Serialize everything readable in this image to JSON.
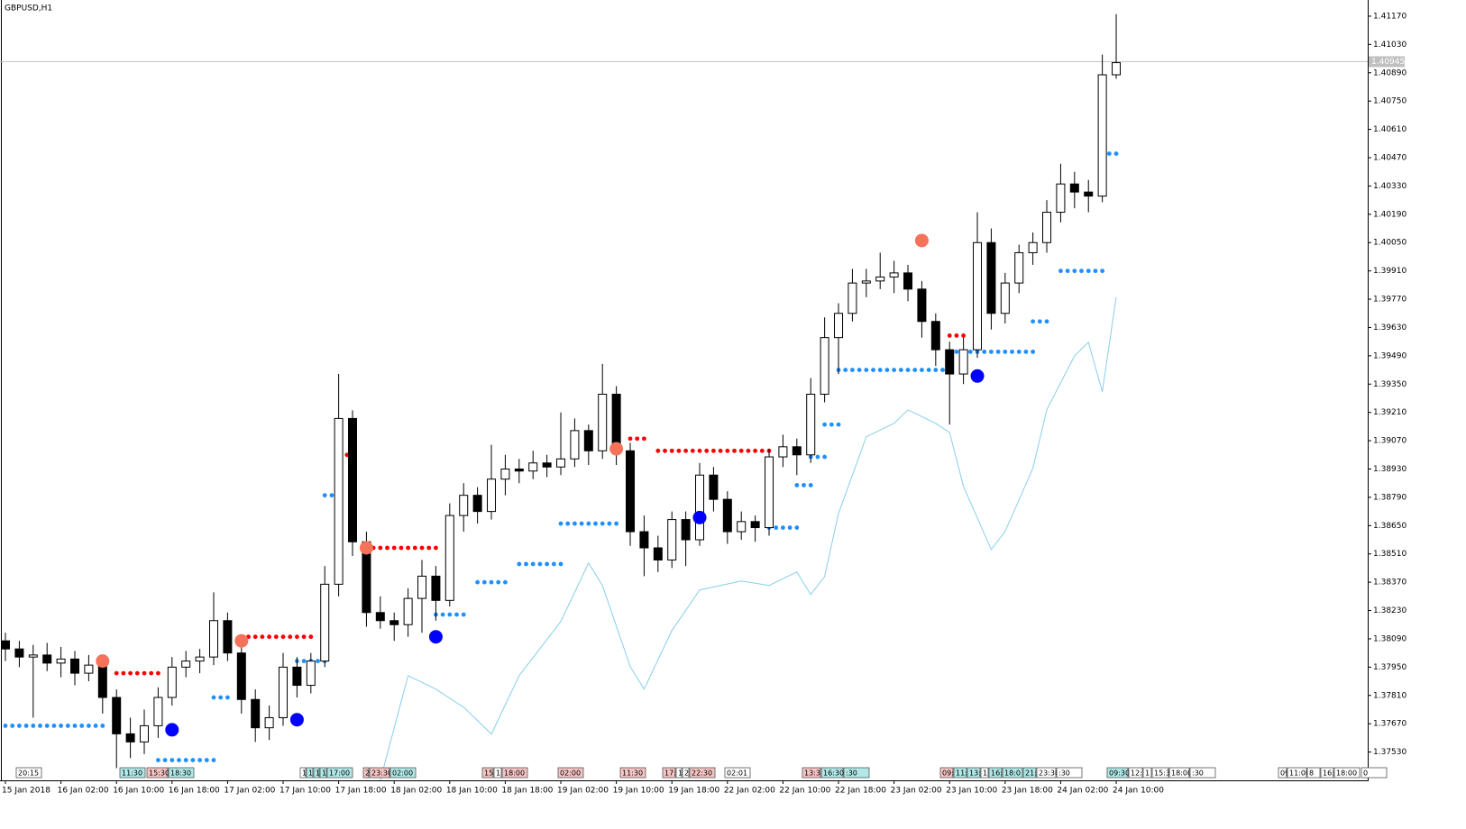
{
  "chart_data": {
    "type": "candlestick",
    "title": "GBPUSD,H1",
    "grid": false,
    "bull_color": "#ffffff",
    "bear_color": "#000000",
    "support_color": "#1e90ff",
    "resistance_color": "#ff0000",
    "ylim": [
      1.3739,
      1.4125
    ],
    "xlim": [
      -0.39,
      98.05
    ],
    "yticks": [
      {
        "value": 1.4117,
        "label": "1.41170"
      },
      {
        "value": 1.4103,
        "label": "1.41030"
      },
      {
        "value": 1.4089,
        "label": "1.40890"
      },
      {
        "value": 1.4075,
        "label": "1.40750"
      },
      {
        "value": 1.4061,
        "label": "1.40610"
      },
      {
        "value": 1.4047,
        "label": "1.40470"
      },
      {
        "value": 1.4033,
        "label": "1.40330"
      },
      {
        "value": 1.4019,
        "label": "1.40190"
      },
      {
        "value": 1.4005,
        "label": "1.40050"
      },
      {
        "value": 1.3991,
        "label": "1.39910"
      },
      {
        "value": 1.3977,
        "label": "1.39770"
      },
      {
        "value": 1.3963,
        "label": "1.39630"
      },
      {
        "value": 1.3949,
        "label": "1.39490"
      },
      {
        "value": 1.3935,
        "label": "1.39350"
      },
      {
        "value": 1.3921,
        "label": "1.39210"
      },
      {
        "value": 1.3907,
        "label": "1.39070"
      },
      {
        "value": 1.3893,
        "label": "1.38930"
      },
      {
        "value": 1.3879,
        "label": "1.38790"
      },
      {
        "value": 1.3865,
        "label": "1.38650"
      },
      {
        "value": 1.3851,
        "label": "1.38510"
      },
      {
        "value": 1.3837,
        "label": "1.38370"
      },
      {
        "value": 1.3823,
        "label": "1.38230"
      },
      {
        "value": 1.3809,
        "label": "1.38090"
      },
      {
        "value": 1.3795,
        "label": "1.37950"
      },
      {
        "value": 1.3781,
        "label": "1.37810"
      },
      {
        "value": 1.3767,
        "label": "1.37670"
      },
      {
        "value": 1.3753,
        "label": "1.37530"
      }
    ],
    "xticks": [
      {
        "value": 0,
        "label": "15 Jan 2018"
      },
      {
        "value": 4,
        "label": "16 Jan 02:00"
      },
      {
        "value": 8,
        "label": "16 Jan 10:00"
      },
      {
        "value": 12,
        "label": "16 Jan 18:00"
      },
      {
        "value": 16,
        "label": "17 Jan 02:00"
      },
      {
        "value": 20,
        "label": "17 Jan 10:00"
      },
      {
        "value": 24,
        "label": "17 Jan 18:00"
      },
      {
        "value": 28,
        "label": "18 Jan 02:00"
      },
      {
        "value": 32,
        "label": "18 Jan 10:00"
      },
      {
        "value": 36,
        "label": "18 Jan 18:00"
      },
      {
        "value": 40,
        "label": "19 Jan 02:00"
      },
      {
        "value": 44,
        "label": "19 Jan 10:00"
      },
      {
        "value": 48,
        "label": "19 Jan 18:00"
      },
      {
        "value": 52,
        "label": "22 Jan 02:00"
      },
      {
        "value": 56,
        "label": "22 Jan 10:00"
      },
      {
        "value": 60,
        "label": "22 Jan 18:00"
      },
      {
        "value": 64,
        "label": "23 Jan 02:00"
      },
      {
        "value": 68,
        "label": "23 Jan 10:00"
      },
      {
        "value": 72,
        "label": "23 Jan 18:00"
      },
      {
        "value": 76,
        "label": "24 Jan 02:00"
      },
      {
        "value": 80,
        "label": "24 Jan 10:00"
      }
    ],
    "bid": 1.40945,
    "candles": [
      [
        1.3808,
        1.3812,
        1.3798,
        1.3804
      ],
      [
        1.3804,
        1.3808,
        1.3795,
        1.38
      ],
      [
        1.38,
        1.3806,
        1.377,
        1.3801
      ],
      [
        1.3801,
        1.3807,
        1.3793,
        1.3797
      ],
      [
        1.3797,
        1.3805,
        1.379,
        1.3799
      ],
      [
        1.3799,
        1.3803,
        1.3786,
        1.3792
      ],
      [
        1.3792,
        1.3801,
        1.3788,
        1.3796
      ],
      [
        1.3796,
        1.3799,
        1.3772,
        1.378
      ],
      [
        1.378,
        1.3784,
        1.3745,
        1.3762
      ],
      [
        1.3762,
        1.377,
        1.375,
        1.3758
      ],
      [
        1.3758,
        1.3774,
        1.3752,
        1.3766
      ],
      [
        1.3766,
        1.3785,
        1.376,
        1.378
      ],
      [
        1.378,
        1.38,
        1.3776,
        1.3795
      ],
      [
        1.3795,
        1.3803,
        1.379,
        1.3798
      ],
      [
        1.3798,
        1.3804,
        1.3792,
        1.38
      ],
      [
        1.38,
        1.3832,
        1.3796,
        1.3818
      ],
      [
        1.3818,
        1.3822,
        1.3798,
        1.3802
      ],
      [
        1.3802,
        1.3806,
        1.3772,
        1.3779
      ],
      [
        1.3779,
        1.3784,
        1.3758,
        1.3765
      ],
      [
        1.3765,
        1.3776,
        1.3759,
        1.377
      ],
      [
        1.377,
        1.3802,
        1.3766,
        1.3795
      ],
      [
        1.3795,
        1.38,
        1.378,
        1.3786
      ],
      [
        1.3786,
        1.3802,
        1.3782,
        1.3798
      ],
      [
        1.3798,
        1.3845,
        1.3795,
        1.3836
      ],
      [
        1.3836,
        1.394,
        1.383,
        1.3918
      ],
      [
        1.3918,
        1.3922,
        1.385,
        1.3857
      ],
      [
        1.3857,
        1.3862,
        1.3815,
        1.3822
      ],
      [
        1.3822,
        1.383,
        1.3814,
        1.3818
      ],
      [
        1.3818,
        1.3822,
        1.3808,
        1.3816
      ],
      [
        1.3816,
        1.3834,
        1.381,
        1.3829
      ],
      [
        1.3829,
        1.3848,
        1.3812,
        1.384
      ],
      [
        1.384,
        1.3845,
        1.3818,
        1.3828
      ],
      [
        1.3828,
        1.3876,
        1.3825,
        1.387
      ],
      [
        1.387,
        1.3886,
        1.3862,
        1.388
      ],
      [
        1.388,
        1.3884,
        1.3866,
        1.3872
      ],
      [
        1.3872,
        1.3905,
        1.3868,
        1.3888
      ],
      [
        1.3888,
        1.39,
        1.388,
        1.3893
      ],
      [
        1.3893,
        1.3898,
        1.3886,
        1.3892
      ],
      [
        1.3892,
        1.3902,
        1.3888,
        1.3896
      ],
      [
        1.3896,
        1.39,
        1.3889,
        1.3894
      ],
      [
        1.3894,
        1.3921,
        1.389,
        1.3898
      ],
      [
        1.3898,
        1.3918,
        1.3894,
        1.3912
      ],
      [
        1.3912,
        1.3915,
        1.3895,
        1.3902
      ],
      [
        1.3902,
        1.3945,
        1.3898,
        1.393
      ],
      [
        1.393,
        1.3934,
        1.3895,
        1.3902
      ],
      [
        1.3902,
        1.3906,
        1.3855,
        1.3862
      ],
      [
        1.3862,
        1.387,
        1.384,
        1.3854
      ],
      [
        1.3854,
        1.386,
        1.3842,
        1.3848
      ],
      [
        1.3848,
        1.3872,
        1.3844,
        1.3868
      ],
      [
        1.3868,
        1.3872,
        1.3845,
        1.3858
      ],
      [
        1.3858,
        1.3896,
        1.3855,
        1.389
      ],
      [
        1.389,
        1.3894,
        1.3872,
        1.3878
      ],
      [
        1.3878,
        1.3882,
        1.3856,
        1.3862
      ],
      [
        1.3862,
        1.3872,
        1.3858,
        1.3867
      ],
      [
        1.3867,
        1.387,
        1.3857,
        1.3864
      ],
      [
        1.3864,
        1.3903,
        1.386,
        1.3899
      ],
      [
        1.3899,
        1.391,
        1.3894,
        1.3904
      ],
      [
        1.3904,
        1.3908,
        1.389,
        1.39
      ],
      [
        1.39,
        1.3938,
        1.3896,
        1.393
      ],
      [
        1.393,
        1.3968,
        1.3926,
        1.3958
      ],
      [
        1.3958,
        1.3975,
        1.394,
        1.397
      ],
      [
        1.397,
        1.3992,
        1.3966,
        1.3985
      ],
      [
        1.3985,
        1.3992,
        1.3978,
        1.3986
      ],
      [
        1.3986,
        1.4,
        1.3982,
        1.3988
      ],
      [
        1.3988,
        1.3996,
        1.398,
        1.399
      ],
      [
        1.399,
        1.3994,
        1.3976,
        1.3982
      ],
      [
        1.3982,
        1.3986,
        1.3958,
        1.3966
      ],
      [
        1.3966,
        1.397,
        1.3944,
        1.3952
      ],
      [
        1.3952,
        1.3956,
        1.3915,
        1.394
      ],
      [
        1.394,
        1.3958,
        1.3935,
        1.3952
      ],
      [
        1.3952,
        1.402,
        1.3948,
        1.4005
      ],
      [
        1.4005,
        1.4012,
        1.3962,
        1.397
      ],
      [
        1.397,
        1.399,
        1.3965,
        1.3985
      ],
      [
        1.3985,
        1.4004,
        1.398,
        1.4
      ],
      [
        1.4,
        1.401,
        1.3994,
        1.4005
      ],
      [
        1.4005,
        1.4026,
        1.4,
        1.402
      ],
      [
        1.402,
        1.4044,
        1.4015,
        1.4034
      ],
      [
        1.4034,
        1.404,
        1.4022,
        1.403
      ],
      [
        1.403,
        1.4036,
        1.402,
        1.4028
      ],
      [
        1.4028,
        1.4098,
        1.4025,
        1.4088
      ],
      [
        1.4088,
        1.4118,
        1.4086,
        1.4094
      ]
    ],
    "support_levels": [
      {
        "value": 1.3766,
        "from": 0,
        "to": 7
      },
      {
        "value": 1.3749,
        "from": 11,
        "to": 15
      },
      {
        "value": 1.378,
        "from": 15,
        "to": 16
      },
      {
        "value": 1.3798,
        "from": 21,
        "to": 23
      },
      {
        "value": 1.388,
        "from": 23,
        "to": 24
      },
      {
        "value": 1.3821,
        "from": 31,
        "to": 33
      },
      {
        "value": 1.3837,
        "from": 34,
        "to": 36
      },
      {
        "value": 1.3846,
        "from": 37,
        "to": 40
      },
      {
        "value": 1.3866,
        "from": 40,
        "to": 44
      },
      {
        "value": 1.3864,
        "from": 55,
        "to": 57
      },
      {
        "value": 1.3885,
        "from": 57,
        "to": 58
      },
      {
        "value": 1.3899,
        "from": 58,
        "to": 59
      },
      {
        "value": 1.3915,
        "from": 59,
        "to": 60
      },
      {
        "value": 1.3942,
        "from": 60,
        "to": 68
      },
      {
        "value": 1.3951,
        "from": 68,
        "to": 74
      },
      {
        "value": 1.3966,
        "from": 74,
        "to": 75
      },
      {
        "value": 1.3991,
        "from": 76,
        "to": 79
      },
      {
        "value": 1.4049,
        "from": 79,
        "to": 80
      }
    ],
    "resistance_levels": [
      {
        "value": 1.3792,
        "from": 8,
        "to": 11
      },
      {
        "value": 1.381,
        "from": 17,
        "to": 22
      },
      {
        "value": 1.39,
        "from": 24.6,
        "to": 25.2
      },
      {
        "value": 1.3854,
        "from": 26,
        "to": 31
      },
      {
        "value": 1.3908,
        "from": 45,
        "to": 46
      },
      {
        "value": 1.3902,
        "from": 47,
        "to": 55
      },
      {
        "value": 1.3959,
        "from": 68,
        "to": 69
      }
    ],
    "swing_highs": {
      "color": "#f4735a",
      "x": [
        7,
        17,
        26,
        44,
        66
      ],
      "values": [
        1.3798,
        1.3808,
        1.3854,
        1.3903,
        1.4006
      ]
    },
    "swing_lows": {
      "color": "#0000ff",
      "x": [
        12,
        21,
        31,
        50,
        70
      ],
      "values": [
        1.3764,
        1.3769,
        1.381,
        1.3869,
        1.3939
      ]
    },
    "indicator": {
      "color": "#87ceeb",
      "x": [
        27,
        29,
        31,
        33,
        35,
        37,
        40,
        42,
        43,
        45,
        46,
        48,
        50,
        53,
        55,
        57,
        58,
        59,
        60,
        62,
        64,
        65,
        67,
        68,
        69,
        71,
        72,
        74,
        75,
        77,
        78,
        79,
        80
      ],
      "values": [
        1.3739,
        1.37908,
        1.37841,
        1.37752,
        1.37619,
        1.37908,
        1.38176,
        1.38465,
        1.38354,
        1.37953,
        1.37841,
        1.38131,
        1.38332,
        1.38376,
        1.38354,
        1.38421,
        1.38309,
        1.38398,
        1.3871,
        1.39089,
        1.39156,
        1.39223,
        1.39156,
        1.39111,
        1.38844,
        1.38532,
        1.38621,
        1.38933,
        1.39223,
        1.3949,
        1.39557,
        1.39312,
        1.3978
      ]
    },
    "events": [
      "20:15",
      "11:30",
      "15:30",
      "18:30",
      "1",
      "1",
      "1",
      "1",
      "17:00",
      "2",
      "23:30",
      "02:00",
      "15:",
      "1",
      "18:00",
      "02:00",
      "11:30",
      "17:",
      "1",
      "2",
      "22:30",
      "02:01",
      "13:3",
      "16:30",
      ":30",
      "09:",
      "11:",
      "13:",
      "1",
      "16:",
      "18:0",
      "21:",
      "23:30",
      ":30",
      "09:30",
      "12:",
      "1",
      "15:3",
      "18:00",
      ":30",
      "09",
      "11:00",
      "8",
      "16:",
      "18:00",
      "0"
    ]
  }
}
